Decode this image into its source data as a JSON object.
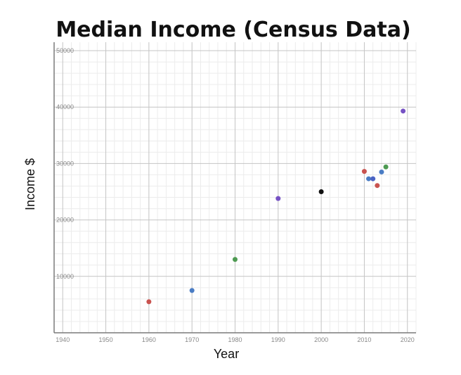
{
  "chart_data": {
    "type": "scatter",
    "title": "Median Income (Census Data)",
    "xlabel": "Year",
    "ylabel": "Income $",
    "xlim": [
      1938,
      2022
    ],
    "ylim": [
      0,
      51500
    ],
    "x_ticks": [
      1940,
      1950,
      1960,
      1970,
      1980,
      1990,
      2000,
      2010,
      2020
    ],
    "y_ticks": [
      10000,
      20000,
      30000,
      40000,
      50000
    ],
    "grid": true,
    "legend": "none",
    "points": [
      {
        "x": 1960,
        "y": 5500,
        "color": "#c9534f"
      },
      {
        "x": 1970,
        "y": 7500,
        "color": "#4a7cc4"
      },
      {
        "x": 1980,
        "y": 13000,
        "color": "#4e9a52"
      },
      {
        "x": 1990,
        "y": 23800,
        "color": "#7652c4"
      },
      {
        "x": 2000,
        "y": 25000,
        "color": "#111111"
      },
      {
        "x": 2010,
        "y": 28600,
        "color": "#c9534f"
      },
      {
        "x": 2011,
        "y": 27300,
        "color": "#4a7cc4"
      },
      {
        "x": 2012,
        "y": 27300,
        "color": "#4a63c4"
      },
      {
        "x": 2013,
        "y": 26100,
        "color": "#c9534f"
      },
      {
        "x": 2014,
        "y": 28500,
        "color": "#4a7cc4"
      },
      {
        "x": 2015,
        "y": 29400,
        "color": "#4e9a52"
      },
      {
        "x": 2019,
        "y": 39300,
        "color": "#7652c4"
      }
    ]
  }
}
